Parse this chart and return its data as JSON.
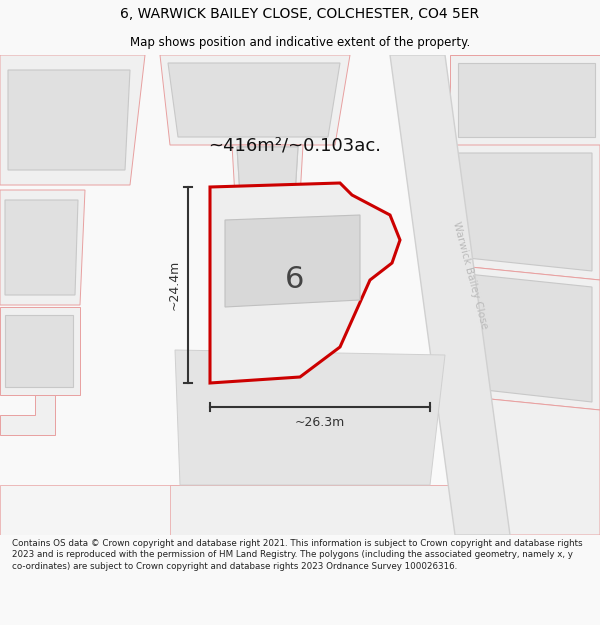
{
  "title": "6, WARWICK BAILEY CLOSE, COLCHESTER, CO4 5ER",
  "subtitle": "Map shows position and indicative extent of the property.",
  "area_label": "~416m²/~0.103ac.",
  "plot_number": "6",
  "dim_width": "~26.3m",
  "dim_height": "~24.4m",
  "road_label": "Warwick Bailey Close",
  "footer": "Contains OS data © Crown copyright and database right 2021. This information is subject to Crown copyright and database rights 2023 and is reproduced with the permission of HM Land Registry. The polygons (including the associated geometry, namely x, y co-ordinates) are subject to Crown copyright and database rights 2023 Ordnance Survey 100026316.",
  "bg_color": "#f9f9f9",
  "map_bg": "#ffffff",
  "plot_fill": "#efefef",
  "plot_edge": "#cc0000",
  "building_fill": "#d8d8d8",
  "building_stroke": "#bbbbbb",
  "land_fill": "#f2f2f2",
  "land_stroke": "#e8a0a0",
  "road_fill": "#e8e8e8",
  "road_stroke": "#cccccc",
  "dim_color": "#333333",
  "title_color": "#000000",
  "road_text_color": "#bbbbbb",
  "footer_color": "#222222"
}
